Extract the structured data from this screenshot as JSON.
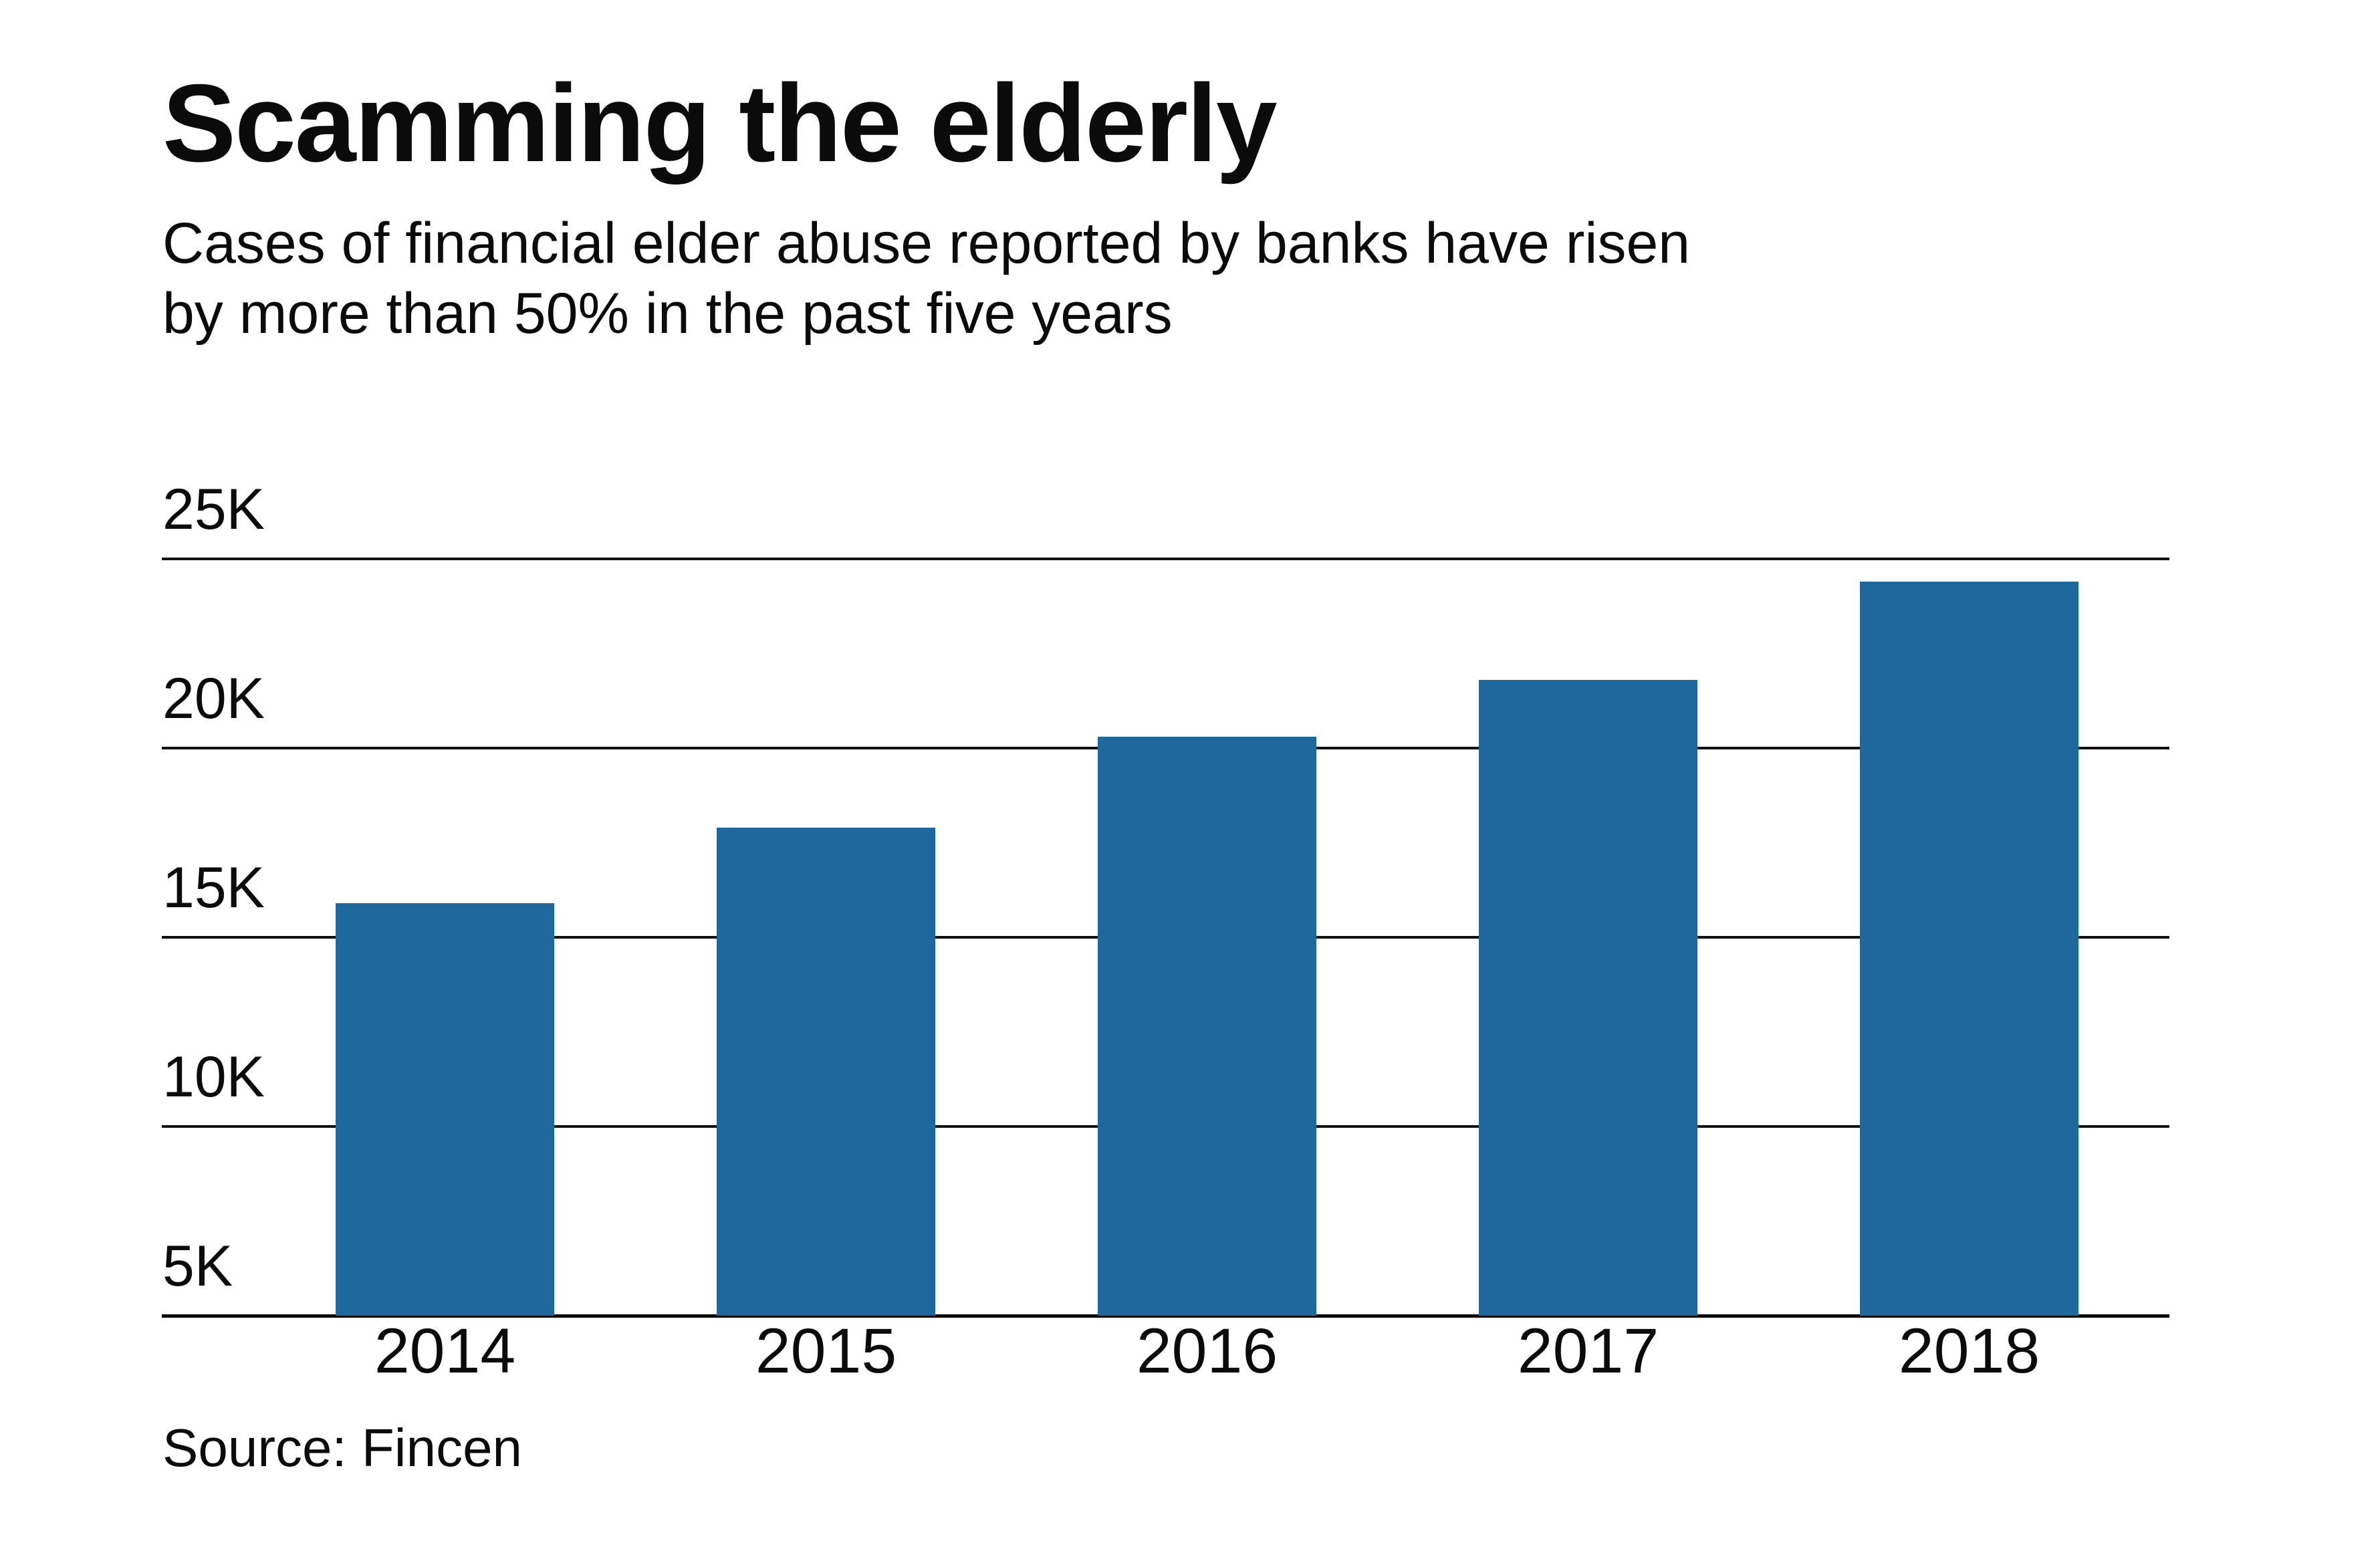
{
  "header": {
    "title": "Scamming the elderly",
    "subtitle_line1": "Cases of financial elder abuse reported by banks have risen",
    "subtitle_line2": "by more than 50% in the past five years"
  },
  "source_note": "Source: Fincen",
  "colors": {
    "bar": "#1e689e",
    "text": "#0b0b0b",
    "grid": "#111111",
    "background": "#ffffff"
  },
  "chart_data": {
    "type": "bar",
    "title": "Scamming the elderly",
    "subtitle": "Cases of financial elder abuse reported by banks have risen by more than 50% in the past five years",
    "source": "Source: Fincen",
    "categories": [
      "2014",
      "2015",
      "2016",
      "2017",
      "2018"
    ],
    "values": [
      15900,
      17900,
      20300,
      21800,
      24400
    ],
    "series_name": "Cases of financial elder abuse reported by banks",
    "xlabel": "",
    "ylabel": "",
    "yticks": [
      {
        "label": "25K",
        "value": 25000
      },
      {
        "label": "20K",
        "value": 20000
      },
      {
        "label": "15K",
        "value": 15000
      },
      {
        "label": "10K",
        "value": 10000
      },
      {
        "label": "5K",
        "value": 5000
      }
    ],
    "ylim": [
      5000,
      26000
    ],
    "axis_truncated_at": 5000,
    "grid": "horizontal",
    "legend": "none",
    "bar_color": "#1e689e"
  }
}
